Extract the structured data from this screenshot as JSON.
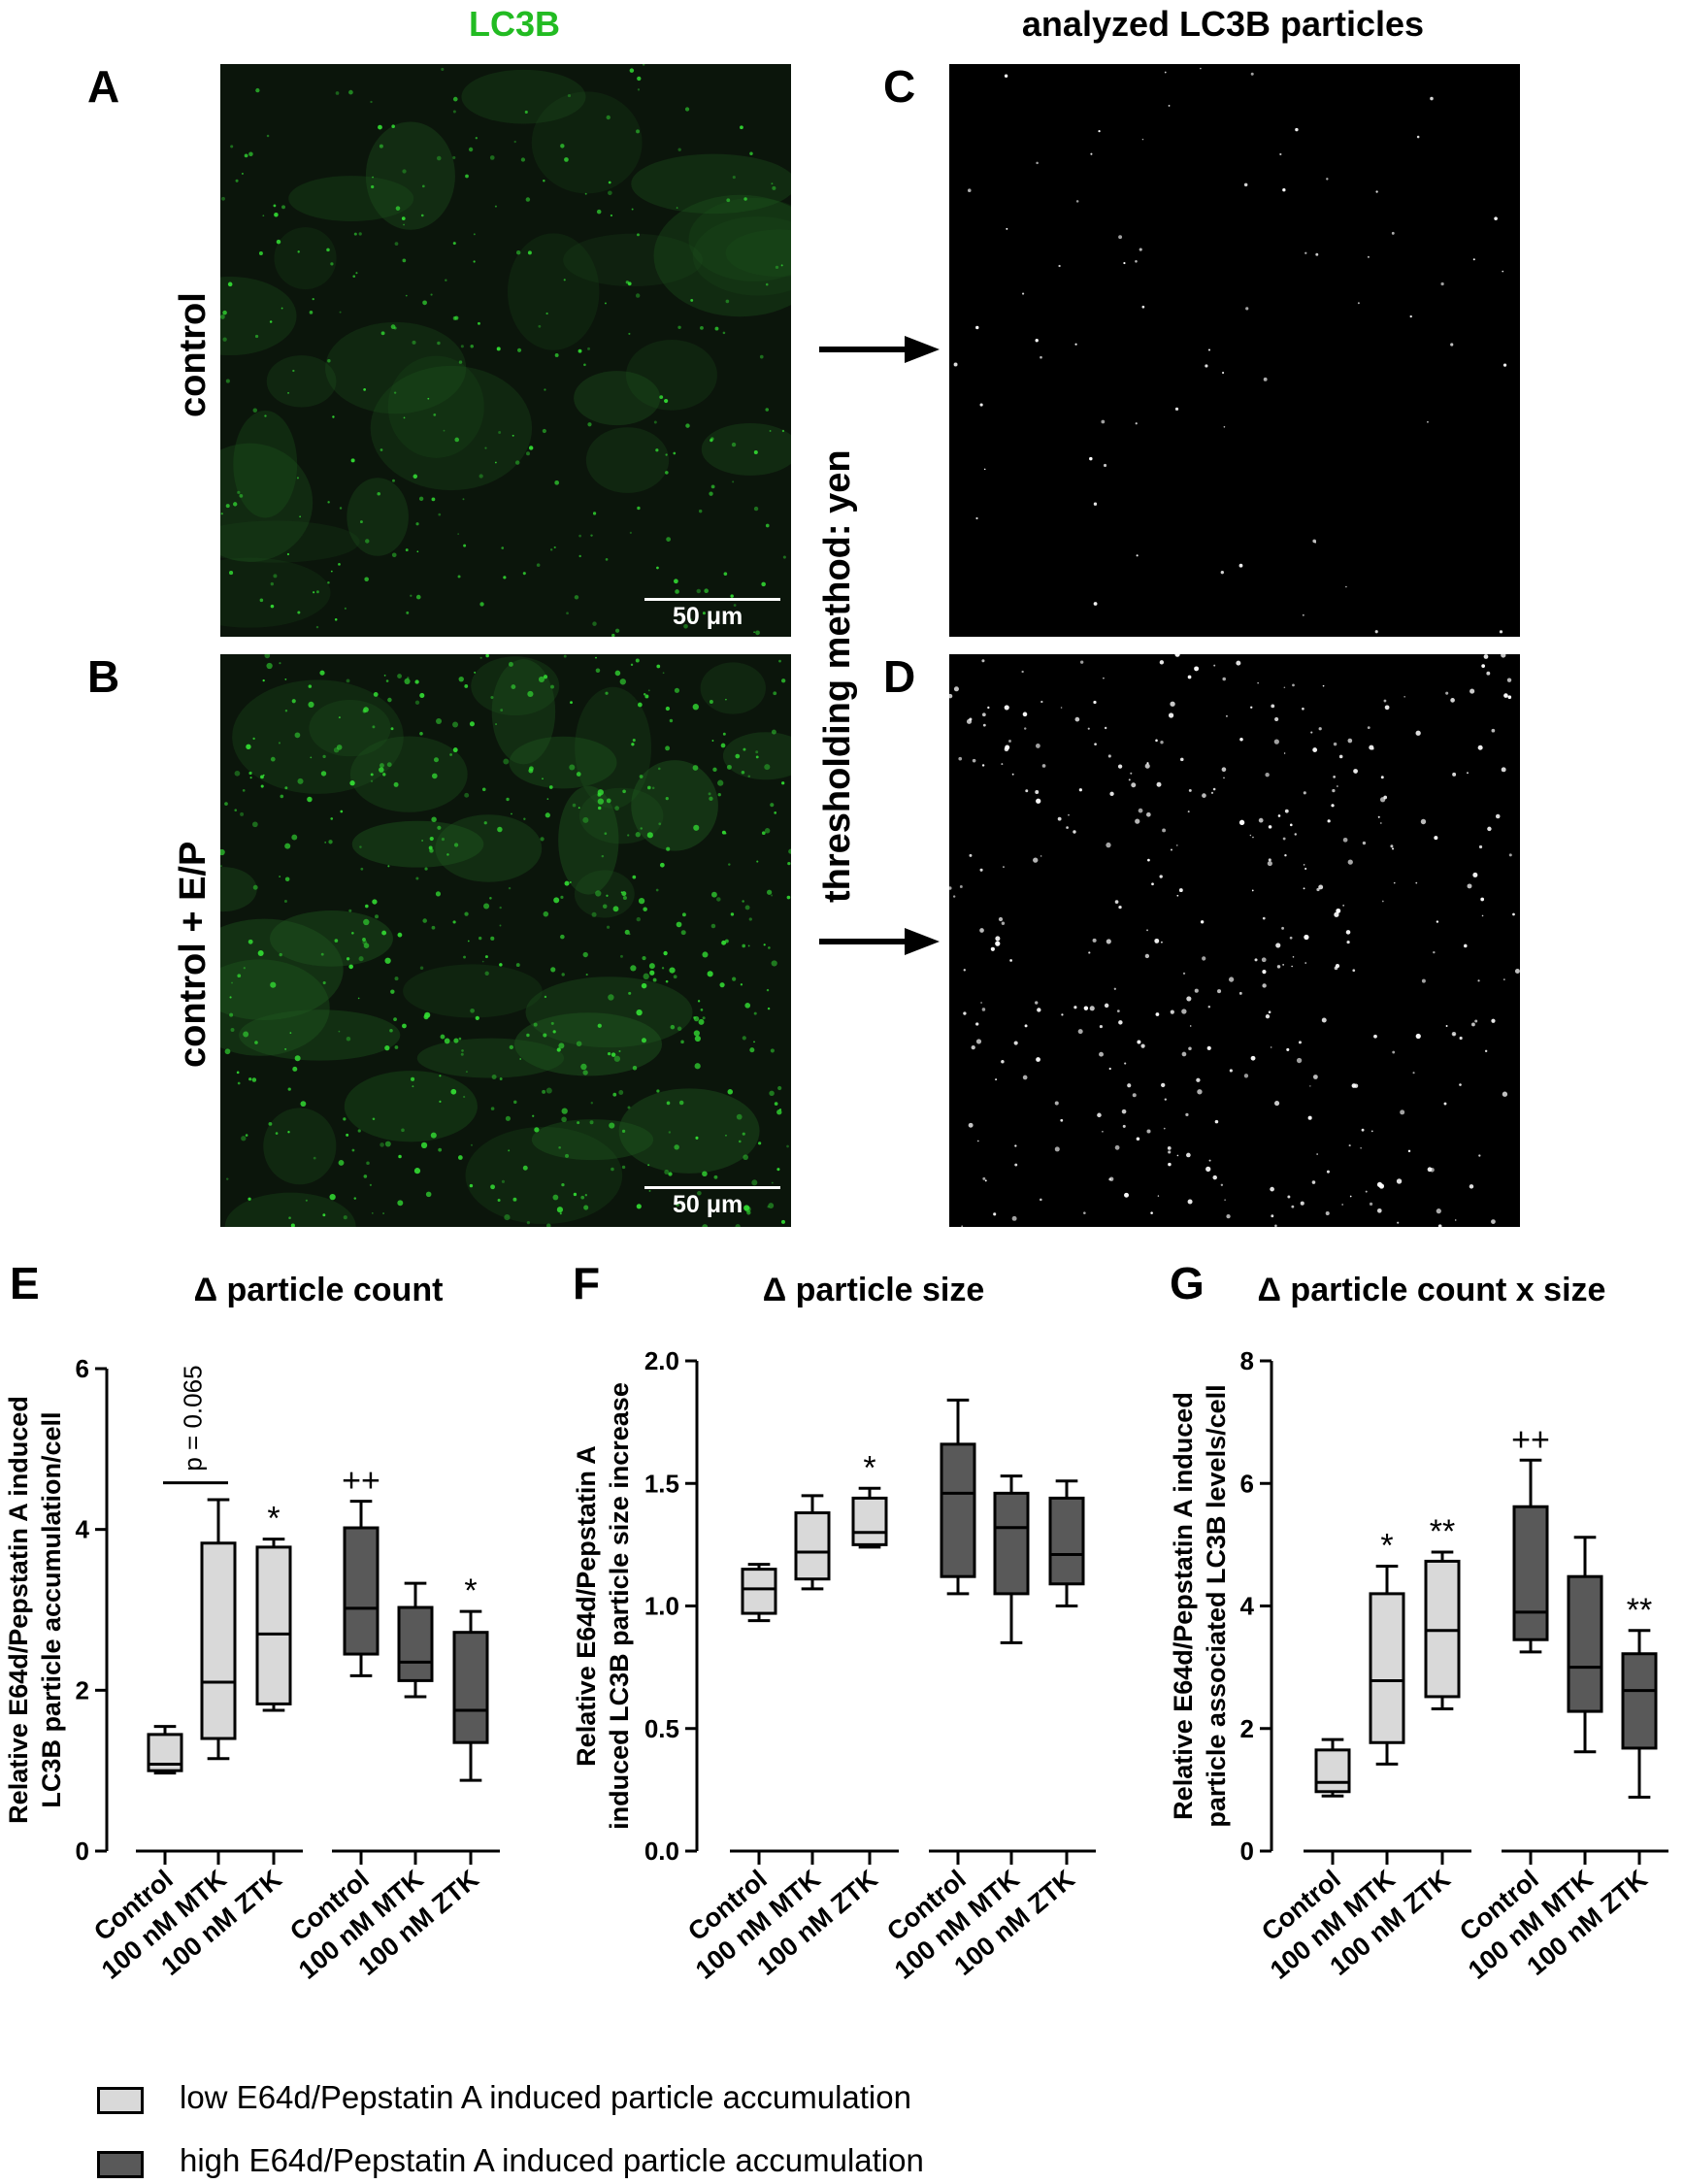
{
  "header": {
    "left_title": "LC3B",
    "right_title": "analyzed LC3B particles",
    "left_title_color": "#22bb22"
  },
  "panels": {
    "A": "A",
    "B": "B",
    "C": "C",
    "D": "D",
    "E": "E",
    "F": "F",
    "G": "G"
  },
  "row_labels": {
    "top": "control",
    "bottom": "control + E/P"
  },
  "threshold_label": "thresholding method: yen",
  "scale_bar_label": "50 μm",
  "colors": {
    "low": "#d9d9d9",
    "high": "#595959",
    "micro_green": "#2ecc40"
  },
  "legend": {
    "low_label": "low E64d/Pepstatin A induced particle accumulation",
    "high_label": "high E64d/Pepstatin A induced particle accumulation"
  },
  "chart_data": [
    {
      "type": "box",
      "title": "Δ particle count",
      "ylabel_lines": [
        "Relative E64d/Pepstatin A induced",
        "LC3B particle accumulation/cell"
      ],
      "ylim": [
        0,
        6
      ],
      "yticks": [
        "0",
        "2",
        "4",
        "6"
      ],
      "categories": [
        "Control",
        "100 nM MTK",
        "100 nM ZTK",
        "Control",
        "100 nM MTK",
        "100 nM ZTK"
      ],
      "series": [
        {
          "group": "low",
          "boxes": [
            {
              "min": 0.97,
              "q1": 1.0,
              "median": 1.08,
              "q3": 1.45,
              "max": 1.55,
              "mark": ""
            },
            {
              "min": 1.15,
              "q1": 1.4,
              "median": 2.1,
              "q3": 3.83,
              "max": 4.37,
              "mark": ""
            },
            {
              "min": 1.75,
              "q1": 1.83,
              "median": 2.7,
              "q3": 3.78,
              "max": 3.88,
              "mark": "*"
            }
          ]
        },
        {
          "group": "high",
          "boxes": [
            {
              "min": 2.18,
              "q1": 2.45,
              "median": 3.02,
              "q3": 4.02,
              "max": 4.35,
              "mark": "++"
            },
            {
              "min": 1.92,
              "q1": 2.12,
              "median": 2.35,
              "q3": 3.03,
              "max": 3.33,
              "mark": ""
            },
            {
              "min": 0.88,
              "q1": 1.35,
              "median": 1.75,
              "q3": 2.72,
              "max": 2.98,
              "mark": "*"
            }
          ]
        }
      ],
      "annotation": "p = 0.065"
    },
    {
      "type": "box",
      "title": "Δ particle size",
      "ylabel_lines": [
        "Relative E64d/Pepstatin A",
        "induced LC3B particle size increase"
      ],
      "ylim": [
        0,
        2.0
      ],
      "yticks": [
        "0.0",
        "0.5",
        "1.0",
        "1.5",
        "2.0"
      ],
      "categories": [
        "Control",
        "100 nM MTK",
        "100 nM ZTK",
        "Control",
        "100 nM MTK",
        "100 nM ZTK"
      ],
      "series": [
        {
          "group": "low",
          "boxes": [
            {
              "min": 0.94,
              "q1": 0.97,
              "median": 1.07,
              "q3": 1.15,
              "max": 1.17,
              "mark": ""
            },
            {
              "min": 1.07,
              "q1": 1.11,
              "median": 1.22,
              "q3": 1.38,
              "max": 1.45,
              "mark": ""
            },
            {
              "min": 1.24,
              "q1": 1.25,
              "median": 1.3,
              "q3": 1.44,
              "max": 1.48,
              "mark": "*"
            }
          ]
        },
        {
          "group": "high",
          "boxes": [
            {
              "min": 1.05,
              "q1": 1.12,
              "median": 1.46,
              "q3": 1.66,
              "max": 1.84,
              "mark": ""
            },
            {
              "min": 0.85,
              "q1": 1.05,
              "median": 1.32,
              "q3": 1.46,
              "max": 1.53,
              "mark": ""
            },
            {
              "min": 1.0,
              "q1": 1.09,
              "median": 1.21,
              "q3": 1.44,
              "max": 1.51,
              "mark": ""
            }
          ]
        }
      ]
    },
    {
      "type": "box",
      "title": "Δ particle count x size",
      "ylabel_lines": [
        "Relative E64d/Pepstatin A induced",
        "particle associated LC3B levels/cell"
      ],
      "ylim": [
        0,
        8
      ],
      "yticks": [
        "0",
        "2",
        "4",
        "6",
        "8"
      ],
      "categories": [
        "Control",
        "100 nM MTK",
        "100 nM ZTK",
        "Control",
        "100 nM MTK",
        "100 nM ZTK"
      ],
      "series": [
        {
          "group": "low",
          "boxes": [
            {
              "min": 0.9,
              "q1": 0.97,
              "median": 1.12,
              "q3": 1.65,
              "max": 1.82,
              "mark": ""
            },
            {
              "min": 1.42,
              "q1": 1.77,
              "median": 2.78,
              "q3": 4.2,
              "max": 4.65,
              "mark": "*"
            },
            {
              "min": 2.32,
              "q1": 2.52,
              "median": 3.6,
              "q3": 4.73,
              "max": 4.88,
              "mark": "**"
            }
          ]
        },
        {
          "group": "high",
          "boxes": [
            {
              "min": 3.25,
              "q1": 3.45,
              "median": 3.9,
              "q3": 5.62,
              "max": 6.38,
              "mark": "++"
            },
            {
              "min": 1.62,
              "q1": 2.28,
              "median": 3.0,
              "q3": 4.48,
              "max": 5.12,
              "mark": ""
            },
            {
              "min": 0.88,
              "q1": 1.68,
              "median": 2.62,
              "q3": 3.22,
              "max": 3.6,
              "mark": "**"
            }
          ]
        }
      ]
    }
  ]
}
